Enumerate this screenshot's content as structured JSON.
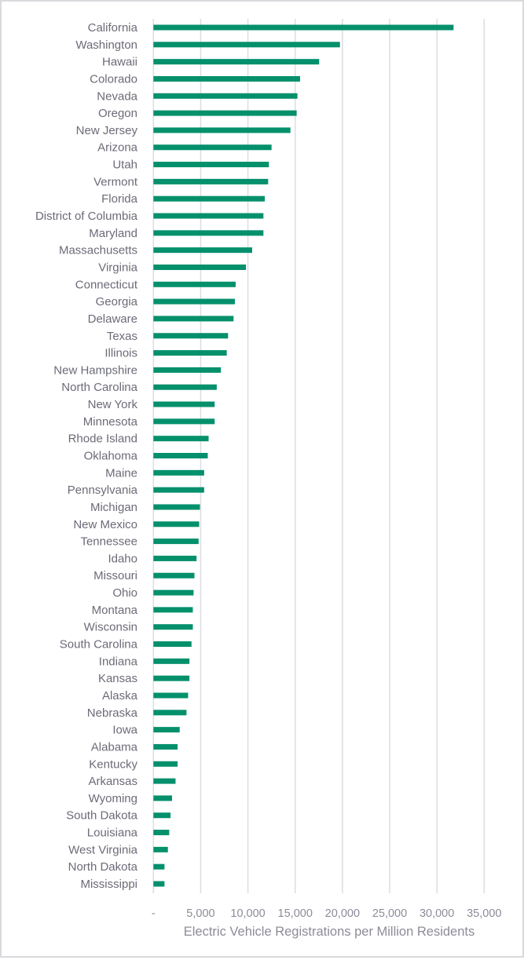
{
  "chart_data": {
    "type": "bar",
    "orientation": "horizontal",
    "title": "",
    "xlabel": "Electric Vehicle Registrations per Million Residents",
    "ylabel": "",
    "xlim": [
      0,
      35000
    ],
    "xticks": [
      0,
      5000,
      10000,
      15000,
      20000,
      25000,
      30000,
      35000
    ],
    "xtick_labels": [
      "-",
      "5,000",
      "10,000",
      "15,000",
      "20,000",
      "25,000",
      "30,000",
      "35,000"
    ],
    "grid": "vertical",
    "legend": "none",
    "bar_color": "#05906c",
    "categories": [
      "California",
      "Washington",
      "Hawaii",
      "Colorado",
      "Nevada",
      "Oregon",
      "New Jersey",
      "Arizona",
      "Utah",
      "Vermont",
      "Florida",
      "District of Columbia",
      "Maryland",
      "Massachusetts",
      "Virginia",
      "Connecticut",
      "Georgia",
      "Delaware",
      "Texas",
      "Illinois",
      "New Hampshire",
      "North Carolina",
      "New York",
      "Minnesota",
      "Rhode Island",
      "Oklahoma",
      "Maine",
      "Pennsylvania",
      "Michigan",
      "New Mexico",
      "Tennessee",
      "Idaho",
      "Missouri",
      "Ohio",
      "Montana",
      "Wisconsin",
      "South Carolina",
      "Indiana",
      "Kansas",
      "Alaska",
      "Nebraska",
      "Iowa",
      "Alabama",
      "Kentucky",
      "Arkansas",
      "Wyoming",
      "South Dakota",
      "Louisiana",
      "West Virginia",
      "North Dakota",
      "Mississippi"
    ],
    "values": [
      31760,
      19740,
      17540,
      15520,
      15240,
      15160,
      14500,
      12500,
      12220,
      12140,
      11780,
      11640,
      11640,
      10450,
      9790,
      8700,
      8620,
      8480,
      7900,
      7760,
      7140,
      6700,
      6480,
      6480,
      5840,
      5750,
      5370,
      5370,
      4920,
      4840,
      4780,
      4560,
      4340,
      4250,
      4170,
      4170,
      4030,
      3810,
      3810,
      3670,
      3500,
      2780,
      2560,
      2560,
      2340,
      1970,
      1810,
      1670,
      1530,
      1170,
      1170
    ]
  }
}
